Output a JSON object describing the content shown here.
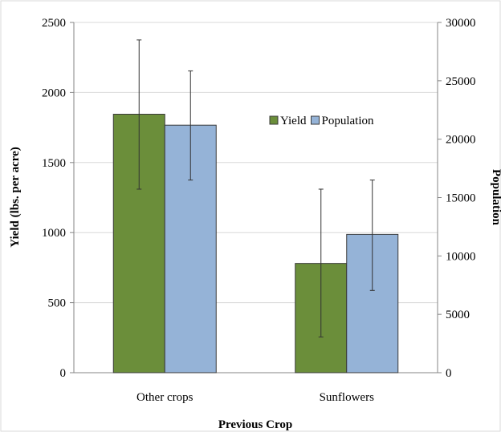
{
  "chart_data": {
    "type": "bar",
    "categories": [
      "Other crops",
      "Sunflowers"
    ],
    "series": [
      {
        "name": "Yield",
        "axis": "left",
        "color": "#6b8e3a",
        "values": [
          1845,
          780
        ],
        "error_low": [
          1310,
          255
        ],
        "error_high": [
          2375,
          1310
        ]
      },
      {
        "name": "Population",
        "axis": "right",
        "color": "#95b3d7",
        "values": [
          21200,
          11850
        ],
        "error_low": [
          16500,
          7050
        ],
        "error_high": [
          25850,
          16500
        ]
      }
    ],
    "xlabel": "Previous Crop",
    "ylabel": "Yield (lbs. per acre)",
    "y2label": "Population",
    "ylim": [
      0,
      2500
    ],
    "y2lim": [
      0,
      30000
    ],
    "yticks": [
      "0",
      "500",
      "1000",
      "1500",
      "2000",
      "2500"
    ],
    "y2ticks": [
      "0",
      "5000",
      "10000",
      "15000",
      "20000",
      "25000",
      "30000"
    ],
    "grid": true,
    "legend_position": "top-right"
  }
}
